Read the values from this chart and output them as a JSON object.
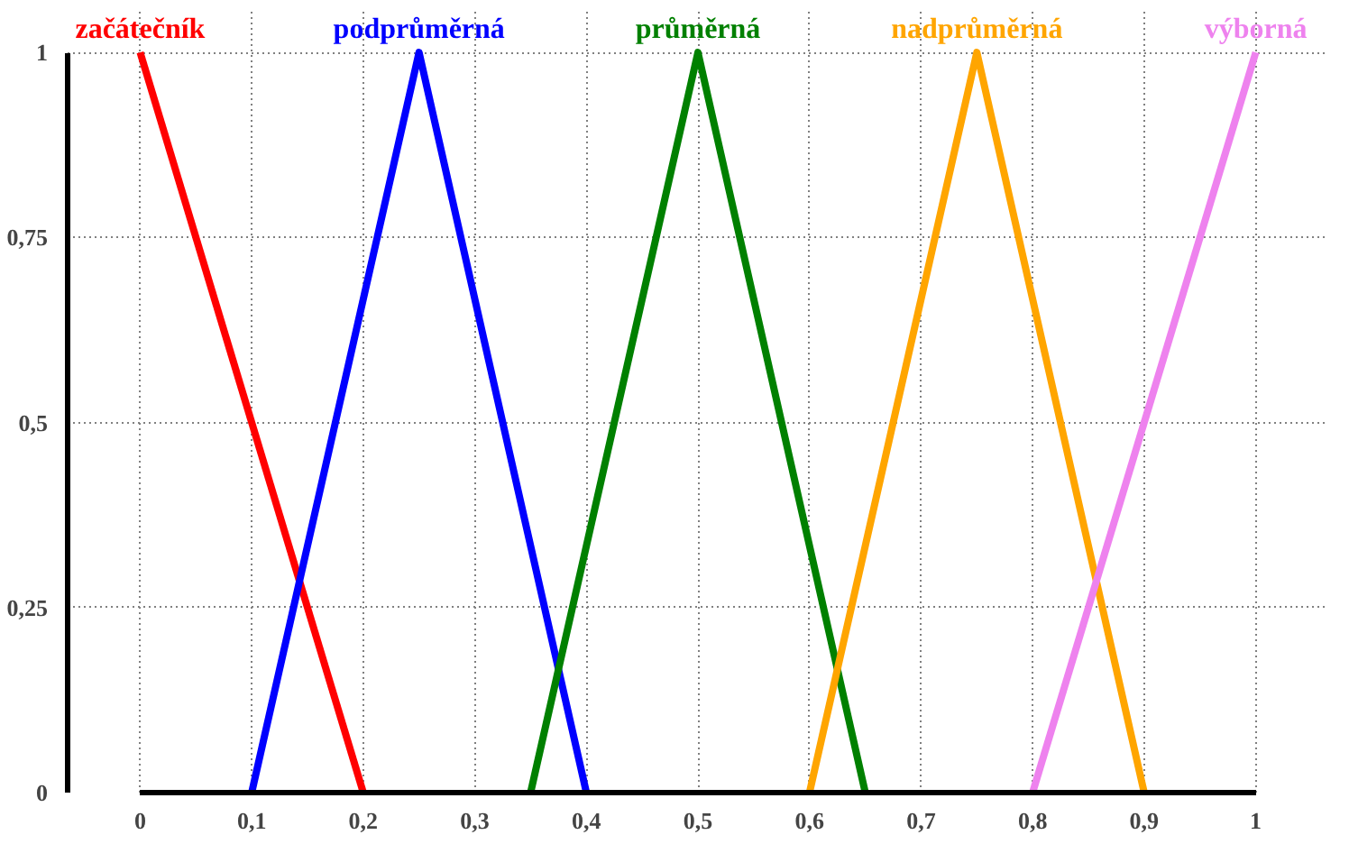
{
  "chart_data": {
    "type": "line",
    "series": [
      {
        "name": "začátečník",
        "color": "#ff0000",
        "x": [
          0,
          0.2
        ],
        "values": [
          1,
          0
        ]
      },
      {
        "name": "podprůměrná",
        "color": "#0000ff",
        "x": [
          0.1,
          0.25,
          0.4
        ],
        "values": [
          0,
          1,
          0
        ]
      },
      {
        "name": "průměrná",
        "color": "#008000",
        "x": [
          0.35,
          0.5,
          0.65
        ],
        "values": [
          0,
          1,
          0
        ]
      },
      {
        "name": "nadprůměrná",
        "color": "#ffa500",
        "x": [
          0.6,
          0.75,
          0.9
        ],
        "values": [
          0,
          1,
          0
        ]
      },
      {
        "name": "výborná",
        "color": "#ee82ee",
        "x": [
          0.8,
          1
        ],
        "values": [
          0,
          1
        ]
      }
    ],
    "xlim": [
      0,
      1
    ],
    "ylim": [
      0,
      1
    ],
    "xticks": [
      0,
      {
        "value": 0.1,
        "label": "0,1"
      },
      {
        "value": 0.2,
        "label": "0,2"
      },
      {
        "value": 0.3,
        "label": "0,3"
      },
      {
        "value": 0.4,
        "label": "0,4"
      },
      {
        "value": 0.5,
        "label": "0,5"
      },
      {
        "value": 0.6,
        "label": "0,6"
      },
      {
        "value": 0.7,
        "label": "0,7"
      },
      {
        "value": 0.8,
        "label": "0,8"
      },
      {
        "value": 0.9,
        "label": "0,9"
      },
      1
    ],
    "yticks": [
      0,
      {
        "value": 0.25,
        "label": "0,25"
      },
      {
        "value": 0.5,
        "label": "0,5"
      },
      {
        "value": 0.75,
        "label": "0,75"
      },
      1
    ],
    "grid": true,
    "marker": "none",
    "line_style": "solid"
  }
}
